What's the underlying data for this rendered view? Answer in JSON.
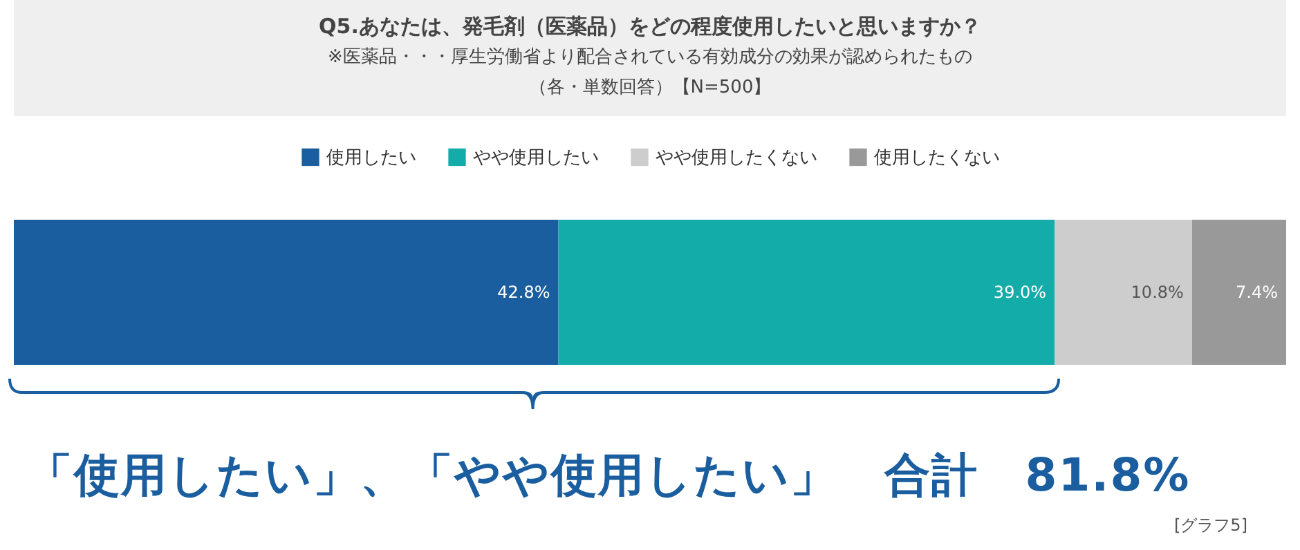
{
  "chart_data": {
    "type": "bar",
    "orientation": "horizontal",
    "stacked": true,
    "title": "Q5.あなたは、発毛剤（医薬品）をどの程度使用したいと思いますか？",
    "subtitle": "※医薬品・・・厚生労働省より配合されている有効成分の効果が認められたもの",
    "categories": [
      null
    ],
    "series": [
      {
        "name": "使用したい",
        "color": "#1a5e9f",
        "values": [
          42.8
        ],
        "value_labels": [
          "42.8%"
        ]
      },
      {
        "name": "やや使用したい",
        "color": "#14aca9",
        "values": [
          39.0
        ],
        "value_labels": [
          "39.0%"
        ]
      },
      {
        "name": "やや使用したくない",
        "color": "#cdcdcd",
        "values": [
          10.8
        ],
        "value_labels": [
          "10.8%"
        ]
      },
      {
        "name": "使用したくない",
        "color": "#999999",
        "values": [
          7.4
        ],
        "value_labels": [
          "7.4%"
        ]
      }
    ],
    "xlim": [
      0,
      100
    ],
    "tick_labels": false,
    "legend": "top",
    "annotations": [
      "（各・単数回答）【N=500】",
      "「使用したい」、「やや使用したい」　合計　81.8%",
      "[グラフ5]"
    ]
  }
}
